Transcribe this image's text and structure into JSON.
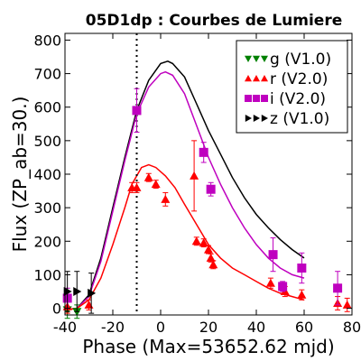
{
  "chart_data": {
    "type": "scatter",
    "title": "05D1dp : Courbes de Lumiere",
    "xlabel": "Phase (Max=53652.62 mjd)",
    "ylabel": "Flux (ZP_ab=30.)",
    "xlim": [
      -40,
      80
    ],
    "ylim": [
      -20,
      820
    ],
    "xticks": [
      -40,
      -20,
      0,
      20,
      40,
      60,
      80
    ],
    "yticks": [
      0,
      100,
      200,
      300,
      400,
      500,
      600,
      700,
      800
    ],
    "vline_x": -10,
    "legend_position": "top-right",
    "series": [
      {
        "name": "g (V1.0)",
        "color": "#008000",
        "marker": "triangle-down",
        "points": [
          {
            "x": -39,
            "y": -5,
            "err": 25
          },
          {
            "x": -35,
            "y": -10,
            "err": 20
          }
        ]
      },
      {
        "name": "r (V2.0)",
        "color": "#ff0000",
        "marker": "triangle-up",
        "points": [
          {
            "x": -39,
            "y": 5,
            "err": 20
          },
          {
            "x": -30,
            "y": 10,
            "err": 15
          },
          {
            "x": -12,
            "y": 360,
            "err": 15
          },
          {
            "x": -10,
            "y": 360,
            "err": 15
          },
          {
            "x": -5,
            "y": 390,
            "err": 12
          },
          {
            "x": -2,
            "y": 370,
            "err": 12
          },
          {
            "x": 2,
            "y": 325,
            "err": 20
          },
          {
            "x": 14,
            "y": 395,
            "err": 105
          },
          {
            "x": 15,
            "y": 200,
            "err": 12
          },
          {
            "x": 18,
            "y": 195,
            "err": 12
          },
          {
            "x": 20,
            "y": 175,
            "err": 12
          },
          {
            "x": 21,
            "y": 150,
            "err": 12
          },
          {
            "x": 22,
            "y": 130,
            "err": 12
          },
          {
            "x": 46,
            "y": 75,
            "err": 15
          },
          {
            "x": 52,
            "y": 50,
            "err": 15
          },
          {
            "x": 59,
            "y": 40,
            "err": 15
          },
          {
            "x": 74,
            "y": 15,
            "err": 20
          },
          {
            "x": 78,
            "y": 10,
            "err": 20
          }
        ]
      },
      {
        "name": "i (V2.0)",
        "color": "#bf00bf",
        "marker": "square",
        "points": [
          {
            "x": -39,
            "y": 30,
            "err": 30
          },
          {
            "x": -10,
            "y": 590,
            "err": 65
          },
          {
            "x": 18,
            "y": 465,
            "err": 30
          },
          {
            "x": 21,
            "y": 355,
            "err": 20
          },
          {
            "x": 47,
            "y": 160,
            "err": 50
          },
          {
            "x": 51,
            "y": 65,
            "err": 15
          },
          {
            "x": 59,
            "y": 120,
            "err": 45
          },
          {
            "x": 74,
            "y": 60,
            "err": 50
          }
        ]
      },
      {
        "name": "z (V1.0)",
        "color": "#000000",
        "marker": "triangle-right",
        "points": [
          {
            "x": -39,
            "y": 50,
            "err": 60
          },
          {
            "x": -35,
            "y": 50,
            "err": 60
          },
          {
            "x": -29,
            "y": 45,
            "err": 60
          }
        ]
      }
    ],
    "fit_curves": [
      {
        "band": "z",
        "color": "#000000",
        "points": [
          [
            -40,
            -5
          ],
          [
            -35,
            0
          ],
          [
            -30,
            40
          ],
          [
            -25,
            150
          ],
          [
            -20,
            300
          ],
          [
            -15,
            450
          ],
          [
            -10,
            590
          ],
          [
            -5,
            680
          ],
          [
            0,
            730
          ],
          [
            3,
            737
          ],
          [
            5,
            730
          ],
          [
            10,
            690
          ],
          [
            15,
            610
          ],
          [
            20,
            530
          ],
          [
            25,
            460
          ],
          [
            30,
            390
          ],
          [
            35,
            330
          ],
          [
            40,
            280
          ],
          [
            45,
            240
          ],
          [
            50,
            205
          ],
          [
            55,
            175
          ],
          [
            60,
            150
          ]
        ]
      },
      {
        "band": "i",
        "color": "#bf00bf",
        "points": [
          [
            -40,
            -5
          ],
          [
            -35,
            0
          ],
          [
            -30,
            35
          ],
          [
            -25,
            140
          ],
          [
            -20,
            290
          ],
          [
            -15,
            440
          ],
          [
            -10,
            580
          ],
          [
            -5,
            660
          ],
          [
            0,
            700
          ],
          [
            2,
            705
          ],
          [
            5,
            695
          ],
          [
            10,
            640
          ],
          [
            15,
            545
          ],
          [
            20,
            450
          ],
          [
            25,
            370
          ],
          [
            30,
            300
          ],
          [
            35,
            240
          ],
          [
            40,
            190
          ],
          [
            45,
            150
          ],
          [
            50,
            120
          ],
          [
            55,
            100
          ],
          [
            60,
            90
          ]
        ]
      },
      {
        "band": "r",
        "color": "#ff0000",
        "points": [
          [
            -40,
            -5
          ],
          [
            -35,
            0
          ],
          [
            -30,
            25
          ],
          [
            -25,
            90
          ],
          [
            -20,
            190
          ],
          [
            -15,
            300
          ],
          [
            -12,
            370
          ],
          [
            -8,
            420
          ],
          [
            -5,
            428
          ],
          [
            -2,
            420
          ],
          [
            2,
            395
          ],
          [
            6,
            360
          ],
          [
            10,
            310
          ],
          [
            15,
            250
          ],
          [
            20,
            190
          ],
          [
            25,
            150
          ],
          [
            30,
            120
          ],
          [
            35,
            100
          ],
          [
            40,
            80
          ],
          [
            45,
            60
          ],
          [
            50,
            45
          ],
          [
            55,
            35
          ],
          [
            60,
            25
          ]
        ]
      }
    ]
  }
}
